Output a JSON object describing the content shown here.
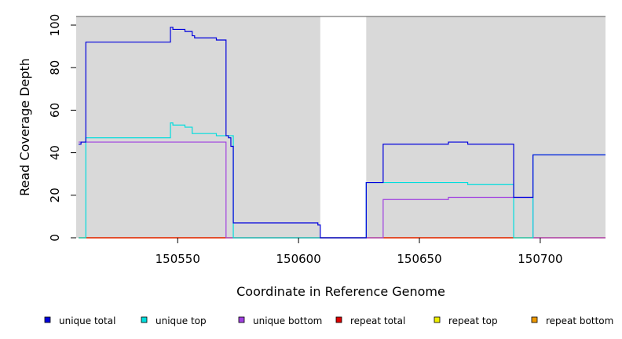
{
  "chart_data": {
    "type": "line",
    "title": "",
    "xlabel": "Coordinate in Reference Genome",
    "ylabel": "Read Coverage Depth",
    "xlim": [
      150508,
      150727
    ],
    "ylim": [
      0,
      105
    ],
    "x_ticks": [
      150550,
      150600,
      150650,
      150700
    ],
    "y_ticks": [
      0,
      20,
      40,
      60,
      80,
      100
    ],
    "grid": false,
    "legend_position": "bottom",
    "shaded_regions": [
      {
        "x_start": 150508,
        "x_end": 150609,
        "color": "#d9d9d9"
      },
      {
        "x_start": 150628,
        "x_end": 150727,
        "color": "#d9d9d9"
      }
    ],
    "series": [
      {
        "name": "unique total",
        "color": "#0000dd",
        "x": [
          150509,
          150510,
          150512,
          150547,
          150548,
          150553,
          150556,
          150557,
          150566,
          150569,
          150570,
          150571,
          150572,
          150573,
          150608,
          150609,
          150628,
          150635,
          150662,
          150670,
          150689,
          150697,
          150727
        ],
        "y": [
          44,
          45,
          92,
          99,
          98,
          97,
          95,
          94,
          93,
          93,
          48,
          47,
          43,
          7,
          6,
          0,
          26,
          44,
          45,
          44,
          19,
          39,
          39
        ]
      },
      {
        "name": "unique top",
        "color": "#00dddd",
        "x": [
          150509,
          150512,
          150547,
          150548,
          150553,
          150556,
          150566,
          150570,
          150573,
          150608,
          150609,
          150628,
          150635,
          150670,
          150689,
          150697,
          150727
        ],
        "y": [
          0,
          47,
          54,
          53,
          52,
          49,
          48,
          48,
          0,
          0,
          0,
          26,
          26,
          25,
          0,
          39,
          39
        ]
      },
      {
        "name": "unique bottom",
        "color": "#a040e0",
        "x": [
          150509,
          150510,
          150570,
          150609,
          150635,
          150662,
          150697,
          150727
        ],
        "y": [
          45,
          45,
          0,
          0,
          18,
          19,
          0,
          0
        ]
      },
      {
        "name": "repeat total",
        "color": "#dd0000",
        "x": [
          150509,
          150727
        ],
        "y": [
          0,
          0
        ]
      },
      {
        "name": "repeat top",
        "color": "#eeee00",
        "x": [
          150509,
          150727
        ],
        "y": [
          0,
          0
        ]
      },
      {
        "name": "repeat bottom",
        "color": "#ee9900",
        "x": [
          150509,
          150609,
          150628,
          150727
        ],
        "y": [
          0,
          0,
          0,
          0
        ]
      }
    ]
  }
}
